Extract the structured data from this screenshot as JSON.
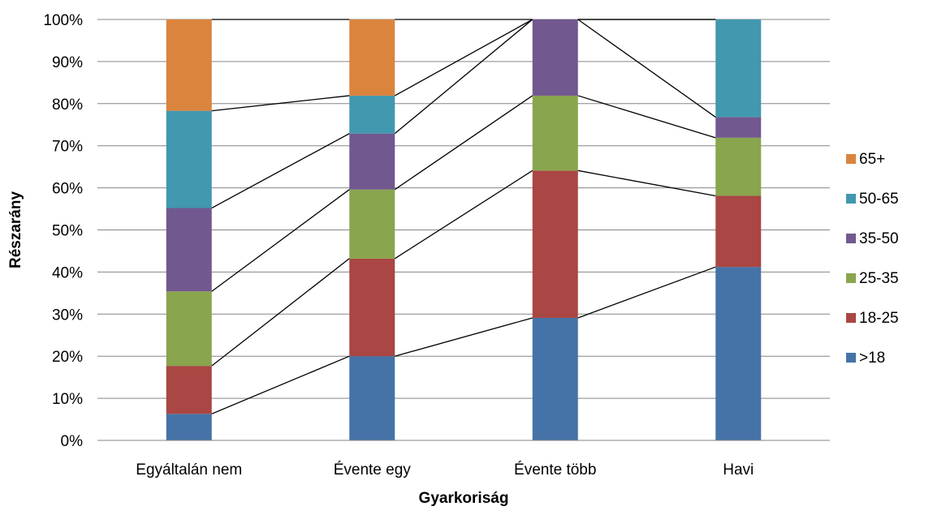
{
  "chart_data": {
    "type": "bar",
    "stacked": true,
    "percent_stacked": true,
    "series_lines": true,
    "categories": [
      "Egyáltalán nem",
      "Évente egy",
      "Évente több",
      "Havi"
    ],
    "series": [
      {
        "name": ">18",
        "color": "#4573A7",
        "values": [
          6.3,
          20.0,
          29.1,
          41.2
        ]
      },
      {
        "name": "18-25",
        "color": "#AA4643",
        "values": [
          11.4,
          23.2,
          35.0,
          16.9
        ]
      },
      {
        "name": "25-35",
        "color": "#89A54E",
        "values": [
          17.7,
          16.4,
          17.8,
          13.8
        ]
      },
      {
        "name": "35-50",
        "color": "#71588F",
        "values": [
          19.8,
          13.3,
          18.1,
          4.9
        ]
      },
      {
        "name": "50-65",
        "color": "#4198AF",
        "values": [
          23.1,
          9.0,
          0,
          23.2
        ]
      },
      {
        "name": "65+",
        "color": "#DB843D",
        "values": [
          21.7,
          18.1,
          0,
          0
        ]
      }
    ],
    "xlabel": "Gyarkoriság",
    "ylabel": "Részarány",
    "ylim": [
      0,
      100
    ],
    "y_ticks": [
      "0%",
      "10%",
      "20%",
      "30%",
      "40%",
      "50%",
      "60%",
      "70%",
      "80%",
      "90%",
      "100%"
    ],
    "grid": true,
    "legend_position": "right"
  }
}
